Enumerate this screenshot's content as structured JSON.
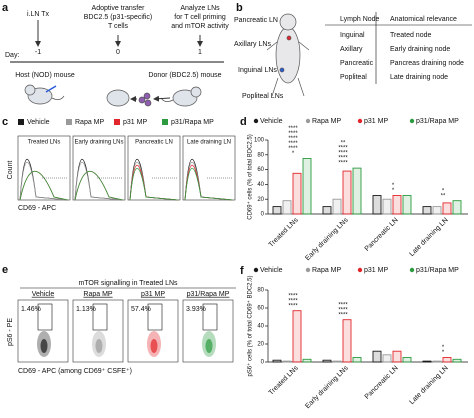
{
  "panel_a": {
    "label": "a",
    "title": "i.LN Tx",
    "day_label": "Day:",
    "days": [
      -1,
      0,
      1
    ],
    "steps": [
      [
        "Adoptive transfer",
        "BDC2.5 (p31-specific)",
        "T cells"
      ],
      [
        "Analyze LNs",
        "for T cell priming",
        "and mTOR activity"
      ]
    ],
    "host": "Host (NOD) mouse",
    "donor": "Donor (BDC2.5) mouse"
  },
  "panel_b": {
    "label": "b",
    "mouse_labels": [
      "Pancreatic LN",
      "Axillary LNs",
      "Inguinal LNs",
      "Popliteal LNs"
    ],
    "table": {
      "header": [
        "Lymph Node",
        "Anatomical relevance"
      ],
      "rows": [
        [
          "Inguinal",
          "Treated node"
        ],
        [
          "Axillary",
          "Early draining node"
        ],
        [
          "Pancreatic",
          "Pancreas draining node"
        ],
        [
          "Popliteal",
          "Late draining node"
        ]
      ]
    }
  },
  "panel_c": {
    "label": "c",
    "histogram_titles": [
      "Treated LNs",
      "Early draining LNs",
      "Pancreatic LN",
      "Late draining LN"
    ],
    "y_label": "Count",
    "x_label": "CD69 - APC"
  },
  "panel_e": {
    "label": "e",
    "title": "mTOR signalling in Treated LNs",
    "percentages": [
      "1.46%",
      "1.13%",
      "57.4%",
      "3.93%"
    ],
    "y_label": "pS6 - PE",
    "x_label": "CD69 - APC (among CD69⁺ CSFE⁺)"
  },
  "chart_data": [
    {
      "type": "bar",
      "label": "d",
      "y_label": "CD69⁺ cells (% of total BDC2.5)",
      "categories": [
        "Treated LNs",
        "Early draining LNs",
        "Pancreatic LN",
        "Late draining LN"
      ],
      "series": [
        {
          "name": "Vehicle",
          "color": "#1a1a1a",
          "values": [
            10,
            10,
            25,
            10
          ]
        },
        {
          "name": "Rapa MP",
          "color": "#9a9a9a",
          "values": [
            18,
            20,
            20,
            10
          ]
        },
        {
          "name": "p31 MP",
          "color": "#e3262b",
          "values": [
            55,
            58,
            25,
            15
          ]
        },
        {
          "name": "p31/Rapa MP",
          "color": "#2c9b3f",
          "values": [
            75,
            62,
            25,
            18
          ]
        }
      ],
      "ylim": [
        0,
        100
      ],
      "yticks": [
        0,
        20,
        40,
        60,
        80,
        100
      ],
      "significance": [
        [
          "*",
          "****",
          "****",
          "****",
          "****",
          "****"
        ],
        [
          "****",
          "****",
          "****",
          "****",
          "**"
        ],
        [
          "*",
          "*"
        ],
        [
          "**",
          "*"
        ]
      ]
    },
    {
      "type": "bar",
      "label": "f",
      "y_label": "pS6⁺ cells (% of total CD69⁺ BDC2.5)",
      "categories": [
        "Treated LNs",
        "Early draining LNs",
        "Pancreatic LN",
        "Late draining LN"
      ],
      "series": [
        {
          "name": "Vehicle",
          "color": "#1a1a1a",
          "values": [
            2,
            2,
            12,
            1
          ]
        },
        {
          "name": "Rapa MP",
          "color": "#9a9a9a",
          "values": [
            1,
            1,
            8,
            1
          ]
        },
        {
          "name": "p31 MP",
          "color": "#e3262b",
          "values": [
            57,
            47,
            12,
            5
          ]
        },
        {
          "name": "p31/Rapa MP",
          "color": "#2c9b3f",
          "values": [
            3,
            5,
            5,
            3
          ]
        }
      ],
      "ylim": [
        0,
        80
      ],
      "yticks": [
        0,
        20,
        40,
        60,
        80
      ],
      "significance": [
        [
          "****",
          "****",
          "****"
        ],
        [
          "****",
          "****",
          "****"
        ],
        [],
        [
          "*",
          "*"
        ]
      ]
    }
  ]
}
